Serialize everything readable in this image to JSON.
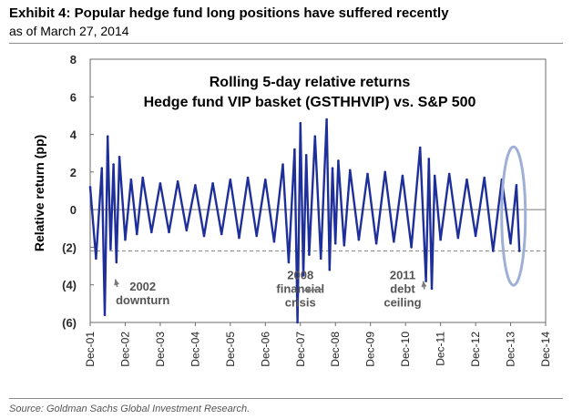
{
  "header": {
    "title": "Exhibit 4: Popular hedge fund long positions have suffered recently",
    "subtitle": "as of March 27, 2014"
  },
  "footer": {
    "source": "Source: Goldman Sachs Global Investment Research."
  },
  "chart_data": {
    "type": "line",
    "title_line1": "Rolling 5-day relative returns",
    "title_line2": "Hedge fund VIP basket (GSTHHVIP) vs. S&P 500",
    "ylabel": "Relative return (pp)",
    "xlabel": "",
    "ylim": [
      -6,
      8
    ],
    "yticks": [
      "8",
      "6",
      "4",
      "2",
      "0",
      "(2)",
      "(4)",
      "(6)"
    ],
    "ytick_values": [
      8,
      6,
      4,
      2,
      0,
      -2,
      -4,
      -6
    ],
    "xlim": [
      "2001-12",
      "2014-12"
    ],
    "xticks": [
      "Dec-01",
      "Dec-02",
      "Dec-03",
      "Dec-04",
      "Dec-05",
      "Dec-06",
      "Dec-07",
      "Dec-08",
      "Dec-09",
      "Dec-10",
      "Dec-11",
      "Dec-12",
      "Dec-13",
      "Dec-14"
    ],
    "grid": false,
    "reference_line": {
      "y": -2.2,
      "style": "dashed"
    },
    "series": [
      {
        "color": "#1f2f9a",
        "x": [
          "2001-12",
          "2002-02",
          "2002-04",
          "2002-05",
          "2002-06",
          "2002-07",
          "2002-08",
          "2002-09",
          "2002-10",
          "2002-12",
          "2003-02",
          "2003-04",
          "2003-06",
          "2003-09",
          "2003-12",
          "2004-03",
          "2004-06",
          "2004-09",
          "2004-12",
          "2005-03",
          "2005-06",
          "2005-09",
          "2005-12",
          "2006-03",
          "2006-06",
          "2006-09",
          "2006-12",
          "2007-03",
          "2007-06",
          "2007-08",
          "2007-10",
          "2007-11",
          "2007-12",
          "2008-01",
          "2008-02",
          "2008-03",
          "2008-05",
          "2008-07",
          "2008-09",
          "2008-10",
          "2008-11",
          "2008-12",
          "2009-01",
          "2009-03",
          "2009-05",
          "2009-08",
          "2009-11",
          "2010-02",
          "2010-05",
          "2010-08",
          "2010-11",
          "2011-02",
          "2011-05",
          "2011-07",
          "2011-08",
          "2011-09",
          "2011-10",
          "2011-12",
          "2012-03",
          "2012-06",
          "2012-09",
          "2012-12",
          "2013-03",
          "2013-06",
          "2013-09",
          "2013-12",
          "2014-02",
          "2014-03"
        ],
        "y": [
          1.2,
          -2.6,
          2.2,
          -5.6,
          3.9,
          -2.1,
          2.4,
          -2.8,
          2.8,
          -1.6,
          1.6,
          -1.3,
          1.7,
          -1.2,
          1.4,
          -1.2,
          1.5,
          -1.1,
          1.3,
          -1.4,
          1.4,
          -1.3,
          1.6,
          -1.5,
          1.7,
          -1.4,
          1.6,
          -1.7,
          2.4,
          -2.8,
          3.2,
          -6.0,
          4.6,
          -3.5,
          2.9,
          -2.4,
          3.9,
          -2.6,
          4.8,
          -3.2,
          2.2,
          -1.8,
          2.6,
          -1.9,
          2.1,
          -1.6,
          1.9,
          -1.8,
          2.0,
          -1.7,
          1.8,
          -2.0,
          3.3,
          -3.8,
          2.7,
          -4.2,
          1.8,
          -1.6,
          1.9,
          -1.5,
          1.6,
          -1.4,
          1.7,
          -2.2,
          1.6,
          -1.8,
          1.3,
          -2.2
        ]
      }
    ],
    "annotations": [
      {
        "lines": [
          "2002",
          "downturn"
        ],
        "x": "2003-06",
        "y": -4.3
      },
      {
        "lines": [
          "2008",
          "financial",
          "crisis"
        ],
        "x": "2007-12",
        "y": -3.7
      },
      {
        "lines": [
          "2011",
          "debt",
          "ceiling"
        ],
        "x": "2010-11",
        "y": -3.7
      }
    ],
    "highlight": {
      "shape": "ellipse",
      "x": "2014-01",
      "y": 0,
      "color": "#9fb0d6"
    }
  }
}
